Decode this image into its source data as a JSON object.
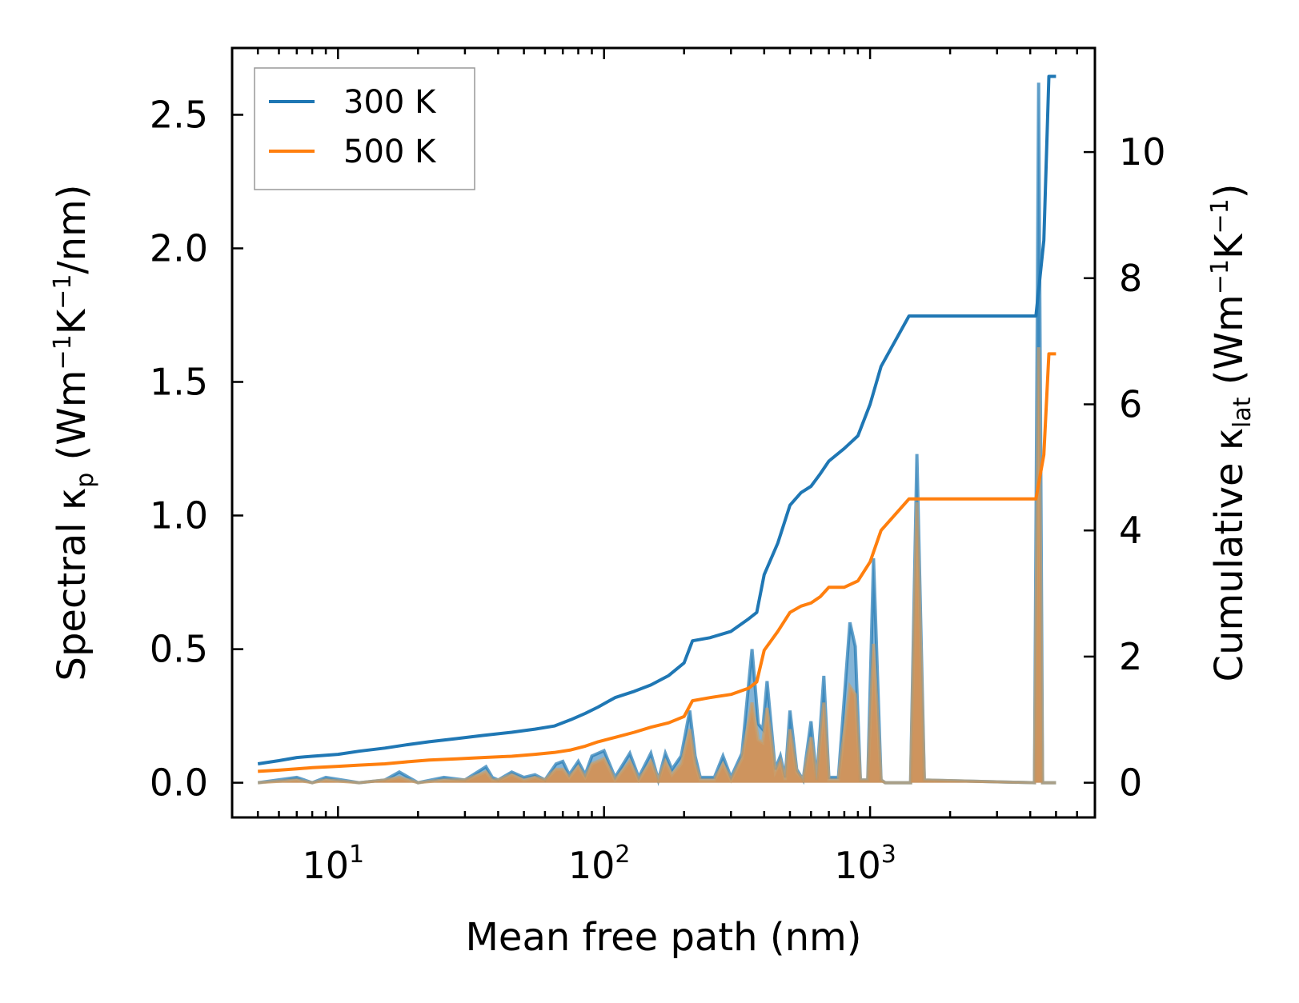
{
  "chart_data": {
    "type": "line",
    "x_scale": "log",
    "xlabel": "Mean free path (nm)",
    "xlim": [
      4.0,
      7000
    ],
    "x_ticks": [
      {
        "value": 10,
        "base": "10",
        "exp": "1"
      },
      {
        "value": 100,
        "base": "10",
        "exp": "2"
      },
      {
        "value": 1000,
        "base": "10",
        "exp": "3"
      }
    ],
    "left_axis": {
      "label_main": "Spectral κ",
      "label_sub": "p",
      "label_units": " (Wm",
      "label_sup1": "−1",
      "label_mid": "K",
      "label_sup2": "−1",
      "label_end": "/nm)",
      "ylim": [
        -0.13,
        2.75
      ],
      "ticks": [
        "0.0",
        "0.5",
        "1.0",
        "1.5",
        "2.0",
        "2.5"
      ]
    },
    "right_axis": {
      "label_main": "Cumulative κ",
      "label_sub": "lat",
      "label_units": " (Wm",
      "label_sup1": "−1",
      "label_mid": "K",
      "label_sup2": "−1",
      "label_end": ")",
      "ylim": [
        -0.55,
        11.65
      ],
      "ticks": [
        "0",
        "2",
        "4",
        "6",
        "8",
        "10"
      ]
    },
    "legend": {
      "placement": "top-left",
      "entries": [
        {
          "label": "300 K",
          "color": "#1f77b4"
        },
        {
          "label": "500 K",
          "color": "#ff7f0e"
        }
      ]
    },
    "series": [
      {
        "name": "300 K",
        "axis": "right",
        "kind": "cumulative",
        "color": "#1f77b4",
        "x": [
          5,
          6,
          7,
          8,
          10,
          12,
          15,
          18,
          22,
          28,
          35,
          45,
          55,
          65,
          75,
          85,
          95,
          110,
          130,
          150,
          175,
          200,
          215,
          250,
          300,
          350,
          375,
          400,
          450,
          500,
          550,
          600,
          650,
          700,
          800,
          900,
          1000,
          1100,
          1400,
          4200,
          4500,
          4700,
          5000
        ],
        "values": [
          0.3,
          0.35,
          0.4,
          0.42,
          0.45,
          0.5,
          0.55,
          0.6,
          0.65,
          0.7,
          0.75,
          0.8,
          0.85,
          0.9,
          1.0,
          1.1,
          1.2,
          1.35,
          1.45,
          1.55,
          1.7,
          1.9,
          2.25,
          2.3,
          2.4,
          2.6,
          2.7,
          3.3,
          3.8,
          4.4,
          4.6,
          4.7,
          4.9,
          5.1,
          5.3,
          5.5,
          6.0,
          6.6,
          7.4,
          7.4,
          8.6,
          11.2,
          11.2
        ]
      },
      {
        "name": "500 K",
        "axis": "right",
        "kind": "cumulative",
        "color": "#ff7f0e",
        "x": [
          5,
          6,
          7,
          8,
          10,
          12,
          15,
          18,
          22,
          28,
          35,
          45,
          55,
          65,
          75,
          85,
          95,
          110,
          130,
          150,
          175,
          200,
          215,
          250,
          300,
          350,
          375,
          400,
          450,
          500,
          550,
          600,
          650,
          700,
          800,
          900,
          1000,
          1100,
          1400,
          4200,
          4500,
          4700,
          5000
        ],
        "values": [
          0.18,
          0.2,
          0.22,
          0.24,
          0.26,
          0.28,
          0.3,
          0.33,
          0.36,
          0.38,
          0.4,
          0.42,
          0.45,
          0.48,
          0.52,
          0.58,
          0.65,
          0.72,
          0.8,
          0.88,
          0.95,
          1.05,
          1.3,
          1.35,
          1.4,
          1.5,
          1.6,
          2.1,
          2.4,
          2.7,
          2.8,
          2.85,
          2.95,
          3.1,
          3.1,
          3.2,
          3.5,
          4.0,
          4.5,
          4.5,
          5.2,
          6.8,
          6.8
        ]
      },
      {
        "name": "300 K spectral",
        "axis": "left",
        "kind": "spectral",
        "color": "#1f77b4",
        "x": [
          5,
          7,
          8,
          9,
          12,
          15,
          17,
          20,
          25,
          30,
          36,
          38,
          40,
          45,
          50,
          55,
          60,
          66,
          70,
          74,
          80,
          85,
          90,
          100,
          110,
          125,
          135,
          150,
          160,
          170,
          180,
          195,
          210,
          220,
          230,
          260,
          280,
          300,
          330,
          360,
          380,
          395,
          410,
          440,
          460,
          480,
          500,
          530,
          560,
          600,
          630,
          670,
          700,
          760,
          840,
          880,
          920,
          980,
          1030,
          1100,
          1140,
          1300,
          1420,
          1500,
          1600,
          4150,
          4300,
          4450,
          4600,
          4700,
          4850,
          5000
        ],
        "values": [
          0,
          0.02,
          0,
          0.02,
          0,
          0.01,
          0.04,
          0,
          0.02,
          0.01,
          0.06,
          0.02,
          0.01,
          0.04,
          0.02,
          0.03,
          0.01,
          0.07,
          0.08,
          0.03,
          0.08,
          0.03,
          0.1,
          0.12,
          0.02,
          0.11,
          0.02,
          0.11,
          0.01,
          0.11,
          0.05,
          0.1,
          0.27,
          0.1,
          0.02,
          0.02,
          0.1,
          0.02,
          0.11,
          0.5,
          0.22,
          0.2,
          0.38,
          0.05,
          0.1,
          0.02,
          0.27,
          0.05,
          0.01,
          0.23,
          0.01,
          0.4,
          0.02,
          0.02,
          0.6,
          0.51,
          0.01,
          0.01,
          0.84,
          0.01,
          0,
          0,
          0,
          1.23,
          0.01,
          0,
          2.62,
          0,
          0,
          0,
          0,
          0
        ]
      },
      {
        "name": "500 K spectral",
        "axis": "left",
        "kind": "spectral",
        "color": "#ff7f0e",
        "x": [
          5,
          7,
          8,
          9,
          12,
          15,
          17,
          20,
          25,
          30,
          36,
          38,
          40,
          45,
          50,
          55,
          60,
          66,
          70,
          74,
          80,
          85,
          90,
          100,
          110,
          125,
          135,
          150,
          160,
          170,
          180,
          195,
          210,
          220,
          230,
          260,
          280,
          300,
          330,
          360,
          380,
          395,
          410,
          440,
          460,
          480,
          500,
          530,
          560,
          600,
          630,
          670,
          700,
          760,
          840,
          880,
          920,
          980,
          1030,
          1100,
          1140,
          1300,
          1420,
          1500,
          1600,
          4150,
          4300,
          4450,
          4600,
          4700,
          4850,
          5000
        ],
        "values": [
          0,
          0.01,
          0,
          0.01,
          0,
          0.01,
          0.02,
          0,
          0.01,
          0.01,
          0.04,
          0.01,
          0.01,
          0.03,
          0.01,
          0.02,
          0.01,
          0.05,
          0.05,
          0.02,
          0.06,
          0.02,
          0.07,
          0.09,
          0.01,
          0.08,
          0.01,
          0.08,
          0.01,
          0.08,
          0.03,
          0.07,
          0.2,
          0.07,
          0.01,
          0.01,
          0.07,
          0.01,
          0.09,
          0.3,
          0.16,
          0.15,
          0.28,
          0.04,
          0.08,
          0.01,
          0.2,
          0.04,
          0.01,
          0.17,
          0.01,
          0.3,
          0.01,
          0.01,
          0.36,
          0.33,
          0.01,
          0.01,
          0.52,
          0.01,
          0,
          0,
          0,
          1.05,
          0.01,
          0,
          1.63,
          0,
          0,
          0,
          0,
          0
        ]
      }
    ]
  }
}
